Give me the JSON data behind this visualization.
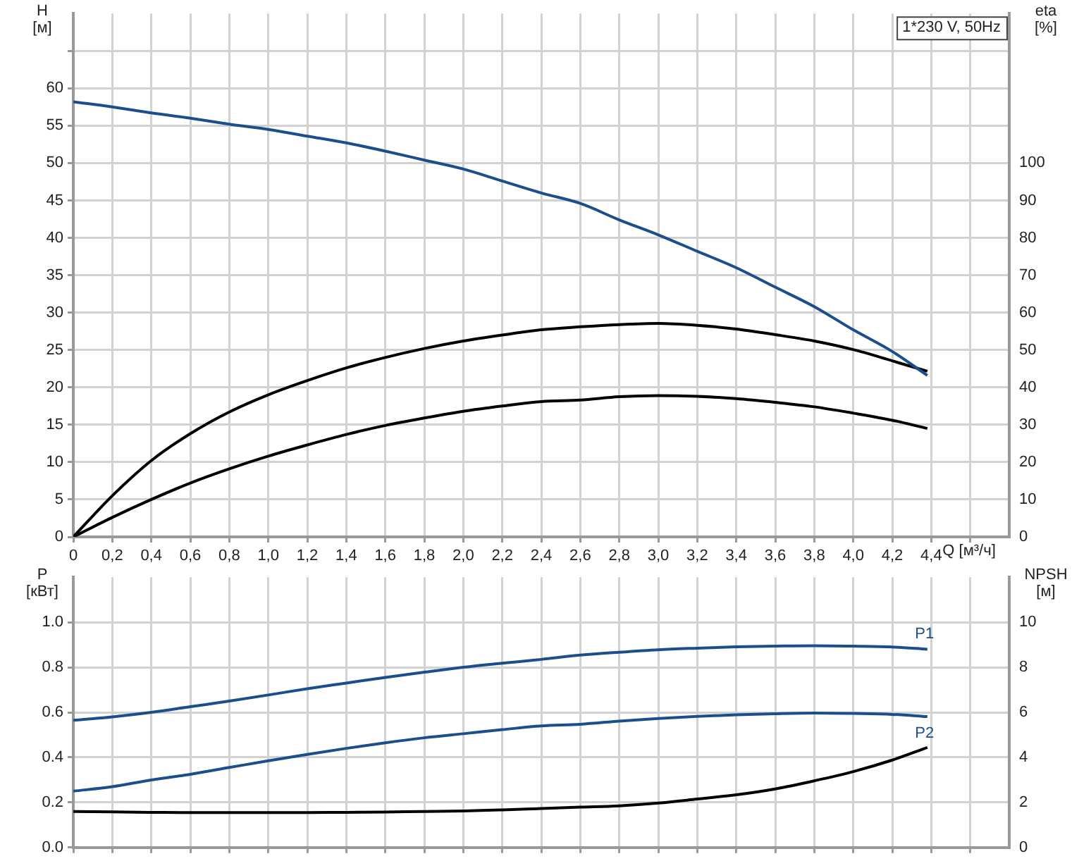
{
  "chart_data": [
    {
      "type": "line",
      "title": "1*230 V, 50Hz",
      "xlabel": "Q [м³/ч]",
      "ylabel": "H [м]",
      "y2label": "eta [%]",
      "grid": true,
      "legend": false,
      "marker": "none",
      "x": [
        0,
        0.2,
        0.4,
        0.6,
        0.8,
        1.0,
        1.2,
        1.4,
        1.6,
        1.8,
        2.0,
        2.2,
        2.4,
        2.6,
        2.8,
        3.0,
        3.2,
        3.4,
        3.6,
        3.8,
        4.0,
        4.2,
        4.38
      ],
      "xlim": [
        0,
        4.8
      ],
      "xticks": [
        0,
        {
          "value": 0.2,
          "label": "0,2"
        },
        {
          "value": 0.4,
          "label": "0,4"
        },
        {
          "value": 0.6,
          "label": "0,6"
        },
        {
          "value": 0.8,
          "label": "0,8"
        },
        {
          "value": 1.0,
          "label": "1,0"
        },
        {
          "value": 1.2,
          "label": "1,2"
        },
        {
          "value": 1.4,
          "label": "1,4"
        },
        {
          "value": 1.6,
          "label": "1,6"
        },
        {
          "value": 1.8,
          "label": "1,8"
        },
        {
          "value": 2.0,
          "label": "2,0"
        },
        {
          "value": 2.2,
          "label": "2,2"
        },
        {
          "value": 2.4,
          "label": "2,4"
        },
        {
          "value": 2.6,
          "label": "2,6"
        },
        {
          "value": 2.8,
          "label": "2,8"
        },
        {
          "value": 3.0,
          "label": "3,0"
        },
        {
          "value": 3.2,
          "label": "3,2"
        },
        {
          "value": 3.4,
          "label": "3,4"
        },
        {
          "value": 3.6,
          "label": "3,6"
        },
        {
          "value": 3.8,
          "label": "3,8"
        },
        {
          "value": 4.0,
          "label": "4,0"
        },
        {
          "value": 4.2,
          "label": "4,2"
        },
        {
          "value": 4.4,
          "label": "4,4"
        },
        {
          "value": 4.6,
          "label": null
        }
      ],
      "ylim": [
        0,
        70
      ],
      "yticks": [
        0,
        5,
        10,
        15,
        20,
        25,
        30,
        35,
        40,
        45,
        50,
        55,
        60,
        {
          "value": 65,
          "label": null
        }
      ],
      "y2lim": [
        0,
        140
      ],
      "y2ticks": [
        0,
        10,
        20,
        30,
        40,
        50,
        60,
        70,
        80,
        90,
        100
      ],
      "series": [
        {
          "color": "#1a4f8b",
          "values": [
            58.2,
            57.5,
            56.7,
            56.0,
            55.2,
            54.5,
            53.6,
            52.7,
            51.6,
            50.4,
            49.2,
            47.6,
            46.0,
            44.6,
            42.4,
            40.4,
            38.2,
            36.0,
            33.4,
            30.8,
            27.7,
            24.8,
            21.6
          ]
        },
        {
          "color": "#000000",
          "axis": "y2",
          "values": [
            0,
            11,
            20.4,
            27.6,
            33.4,
            38,
            41.8,
            45.2,
            48,
            50.4,
            52.4,
            54,
            55.4,
            56.2,
            56.8,
            57.1,
            56.6,
            55.6,
            54.1,
            52.4,
            50.1,
            47.1,
            44.3
          ]
        },
        {
          "color": "#000000",
          "axis": "y2",
          "values": [
            0,
            5.2,
            10,
            14.4,
            18.2,
            21.6,
            24.6,
            27.4,
            29.8,
            31.8,
            33.6,
            35,
            36.2,
            36.6,
            37.5,
            37.8,
            37.6,
            37,
            36,
            34.8,
            33.1,
            31.2,
            29
          ]
        }
      ]
    },
    {
      "type": "line",
      "ylabel": "P [кВт]",
      "y2label": "NPSH [м]",
      "grid": true,
      "legend": false,
      "marker": "none",
      "tick_labels": "y",
      "x": [
        0,
        0.2,
        0.4,
        0.6,
        0.8,
        1.0,
        1.2,
        1.4,
        1.6,
        1.8,
        2.0,
        2.2,
        2.4,
        2.6,
        2.8,
        3.0,
        3.2,
        3.4,
        3.6,
        3.8,
        4.0,
        4.2,
        4.38
      ],
      "xlim": [
        0,
        4.8
      ],
      "xticks": [
        0,
        0.2,
        0.4,
        0.6,
        0.8,
        1.0,
        1.2,
        1.4,
        1.6,
        1.8,
        2.0,
        2.2,
        2.4,
        2.6,
        2.8,
        3.0,
        3.2,
        3.4,
        3.6,
        3.8,
        4.0,
        4.2,
        4.4,
        4.6
      ],
      "ylim": [
        0,
        1.2
      ],
      "yticks": [
        {
          "value": 0,
          "label": "0.0"
        },
        0.2,
        0.4,
        0.6,
        0.8,
        {
          "value": 1.0,
          "label": "1.0"
        }
      ],
      "y2lim": [
        0,
        12
      ],
      "y2ticks": [
        0,
        2,
        4,
        6,
        8,
        10
      ],
      "series": [
        {
          "name": "P1",
          "color": "#1a4f8b",
          "values": [
            0.565,
            0.58,
            0.6,
            0.625,
            0.65,
            0.677,
            0.705,
            0.73,
            0.755,
            0.778,
            0.8,
            0.818,
            0.835,
            0.854,
            0.867,
            0.878,
            0.885,
            0.891,
            0.894,
            0.896,
            0.894,
            0.89,
            0.88
          ]
        },
        {
          "name": "P2",
          "color": "#1a4f8b",
          "values": [
            0.25,
            0.27,
            0.3,
            0.325,
            0.355,
            0.385,
            0.413,
            0.44,
            0.465,
            0.487,
            0.505,
            0.523,
            0.54,
            0.547,
            0.561,
            0.573,
            0.582,
            0.589,
            0.594,
            0.597,
            0.595,
            0.591,
            0.581
          ]
        },
        {
          "color": "#000000",
          "axis": "y2",
          "values": [
            1.6,
            1.58,
            1.56,
            1.55,
            1.55,
            1.55,
            1.55,
            1.56,
            1.57,
            1.6,
            1.62,
            1.67,
            1.73,
            1.79,
            1.85,
            1.97,
            2.15,
            2.34,
            2.6,
            2.96,
            3.37,
            3.88,
            4.44
          ]
        }
      ]
    }
  ]
}
